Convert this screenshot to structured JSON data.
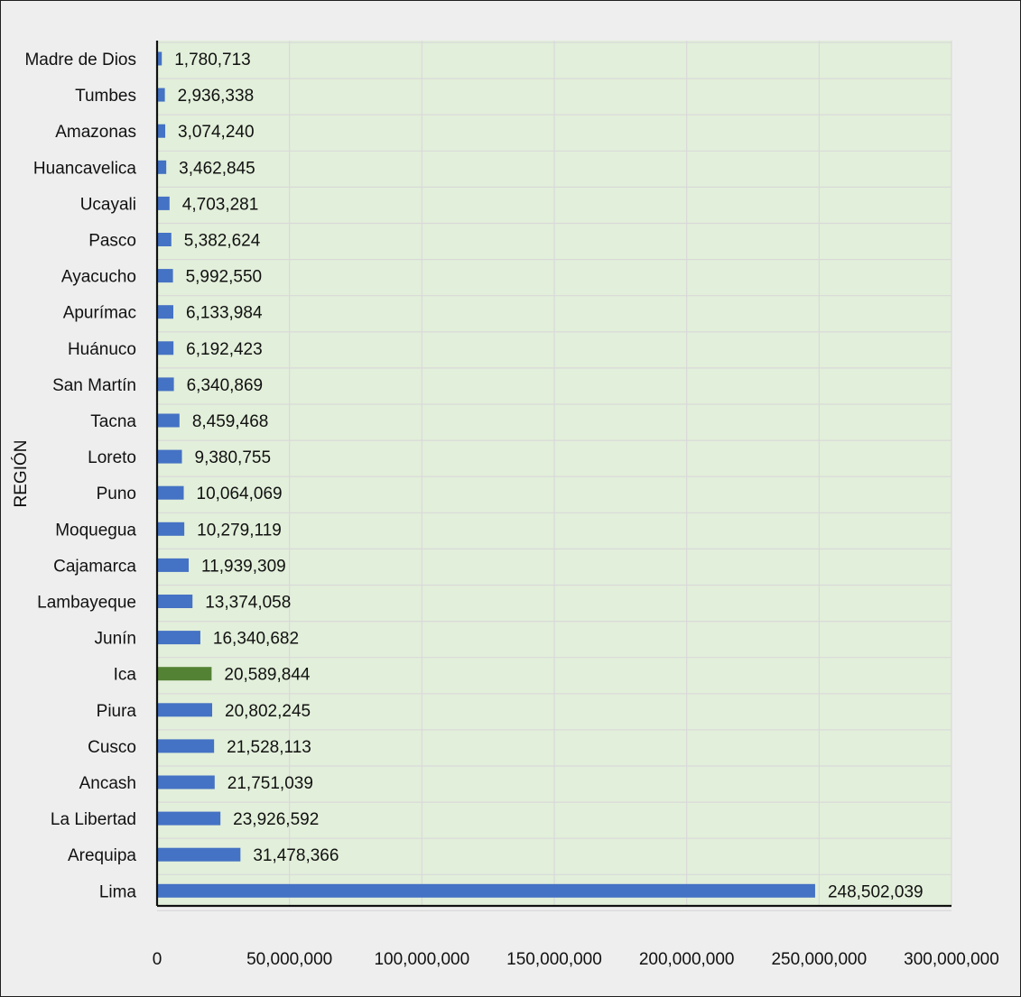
{
  "chart_data": {
    "type": "bar",
    "orientation": "horizontal",
    "ylabel": "REGIÓN",
    "xlabel": "",
    "xlim": [
      0,
      300000000
    ],
    "x_ticks": [
      0,
      50000000,
      100000000,
      150000000,
      200000000,
      250000000,
      300000000
    ],
    "x_tick_labels": [
      "0",
      "50,000,000",
      "100,000,000",
      "150,000,000",
      "200,000,000",
      "250,000,000",
      "300,000,000"
    ],
    "grid": true,
    "legend": "none",
    "colors": {
      "bar": "#4472c4",
      "highlight": "#548235",
      "plot_background": "#e2efda",
      "frame_background": "#eeeeee"
    },
    "highlight_category": "Ica",
    "categories": [
      "Madre de Dios",
      "Tumbes",
      "Amazonas",
      "Huancavelica",
      "Ucayali",
      "Pasco",
      "Ayacucho",
      "Apurímac",
      "Huánuco",
      "San Martín",
      "Tacna",
      "Loreto",
      "Puno",
      "Moquegua",
      "Cajamarca",
      "Lambayeque",
      "Junín",
      "Ica",
      "Piura",
      "Cusco",
      "Ancash",
      "La Libertad",
      "Arequipa",
      "Lima"
    ],
    "values": [
      1780713,
      2936338,
      3074240,
      3462845,
      4703281,
      5382624,
      5992550,
      6133984,
      6192423,
      6340869,
      8459468,
      9380755,
      10064069,
      10279119,
      11939309,
      13374058,
      16340682,
      20589844,
      20802245,
      21528113,
      21751039,
      23926592,
      31478366,
      248502039
    ],
    "value_labels": [
      "1,780,713",
      "2,936,338",
      "3,074,240",
      "3,462,845",
      "4,703,281",
      "5,382,624",
      "5,992,550",
      "6,133,984",
      "6,192,423",
      "6,340,869",
      "8,459,468",
      "9,380,755",
      "10,064,069",
      "10,279,119",
      "11,939,309",
      "13,374,058",
      "16,340,682",
      "20,589,844",
      "20,802,245",
      "21,528,113",
      "21,751,039",
      "23,926,592",
      "31,478,366",
      "248,502,039"
    ]
  }
}
